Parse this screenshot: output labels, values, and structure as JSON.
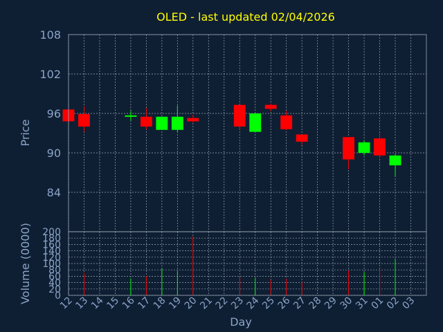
{
  "chart_data": [
    {
      "type": "candlestick",
      "title": "OLED - last updated 02/04/2026",
      "ylabel": "Price",
      "ylim": [
        78,
        108
      ],
      "yticks": [
        84,
        90,
        96,
        102,
        108
      ],
      "grid": true,
      "up_color": "#00ff00",
      "down_color": "#ff0000",
      "candles": [
        {
          "day": "12",
          "open": 96.6,
          "high": 96.6,
          "low": 94.8,
          "close": 94.8
        },
        {
          "day": "13",
          "open": 95.9,
          "high": 97.1,
          "low": 93.2,
          "close": 94.0
        },
        {
          "day": "16",
          "open": 95.6,
          "high": 96.4,
          "low": 94.9,
          "close": 95.7
        },
        {
          "day": "17",
          "open": 95.5,
          "high": 96.8,
          "low": 93.6,
          "close": 94.0
        },
        {
          "day": "18",
          "open": 93.5,
          "high": 95.5,
          "low": 93.5,
          "close": 95.5
        },
        {
          "day": "19",
          "open": 93.5,
          "high": 97.2,
          "low": 93.1,
          "close": 95.5
        },
        {
          "day": "20",
          "open": 95.3,
          "high": 95.8,
          "low": 94.6,
          "close": 94.8
        },
        {
          "day": "23",
          "open": 97.3,
          "high": 97.3,
          "low": 93.5,
          "close": 94.0
        },
        {
          "day": "24",
          "open": 93.2,
          "high": 96.0,
          "low": 93.2,
          "close": 96.0
        },
        {
          "day": "25",
          "open": 97.3,
          "high": 97.5,
          "low": 96.3,
          "close": 96.7
        },
        {
          "day": "26",
          "open": 95.7,
          "high": 96.4,
          "low": 93.5,
          "close": 93.6
        },
        {
          "day": "27",
          "open": 92.8,
          "high": 92.8,
          "low": 91.2,
          "close": 91.7
        },
        {
          "day": "30",
          "open": 92.4,
          "high": 92.4,
          "low": 87.5,
          "close": 89.0
        },
        {
          "day": "31",
          "open": 90.0,
          "high": 91.8,
          "low": 89.6,
          "close": 91.6
        },
        {
          "day": "01",
          "open": 92.2,
          "high": 93.0,
          "low": 89.3,
          "close": 89.6
        },
        {
          "day": "02",
          "open": 88.1,
          "high": 89.8,
          "low": 86.4,
          "close": 89.6
        }
      ]
    },
    {
      "type": "bar",
      "xlabel": "Day",
      "ylabel": "Volume (0000)",
      "ylim": [
        0,
        200
      ],
      "yticks": [
        0,
        20,
        40,
        60,
        80,
        100,
        120,
        140,
        160,
        180,
        200
      ],
      "grid": true,
      "day_ticks": [
        "12",
        "13",
        "14",
        "15",
        "16",
        "17",
        "18",
        "19",
        "20",
        "21",
        "22",
        "23",
        "24",
        "25",
        "26",
        "27",
        "28",
        "29",
        "30",
        "31",
        "01",
        "02",
        "03"
      ],
      "bars": [
        {
          "day": "12",
          "value": 0,
          "color": "#ff0000"
        },
        {
          "day": "13",
          "value": 70,
          "color": "#ff0000"
        },
        {
          "day": "16",
          "value": 53,
          "color": "#00ff00"
        },
        {
          "day": "17",
          "value": 60,
          "color": "#ff0000"
        },
        {
          "day": "18",
          "value": 85,
          "color": "#00ff00"
        },
        {
          "day": "19",
          "value": 75,
          "color": "#00ff00"
        },
        {
          "day": "20",
          "value": 185,
          "color": "#ff0000"
        },
        {
          "day": "23",
          "value": 58,
          "color": "#ff0000"
        },
        {
          "day": "24",
          "value": 55,
          "color": "#00ff00"
        },
        {
          "day": "25",
          "value": 50,
          "color": "#ff0000"
        },
        {
          "day": "26",
          "value": 52,
          "color": "#ff0000"
        },
        {
          "day": "27",
          "value": 42,
          "color": "#ff0000"
        },
        {
          "day": "30",
          "value": 78,
          "color": "#ff0000"
        },
        {
          "day": "31",
          "value": 73,
          "color": "#00ff00"
        },
        {
          "day": "01",
          "value": 83,
          "color": "#ff0000"
        },
        {
          "day": "02",
          "value": 115,
          "color": "#00ff00"
        }
      ]
    }
  ]
}
